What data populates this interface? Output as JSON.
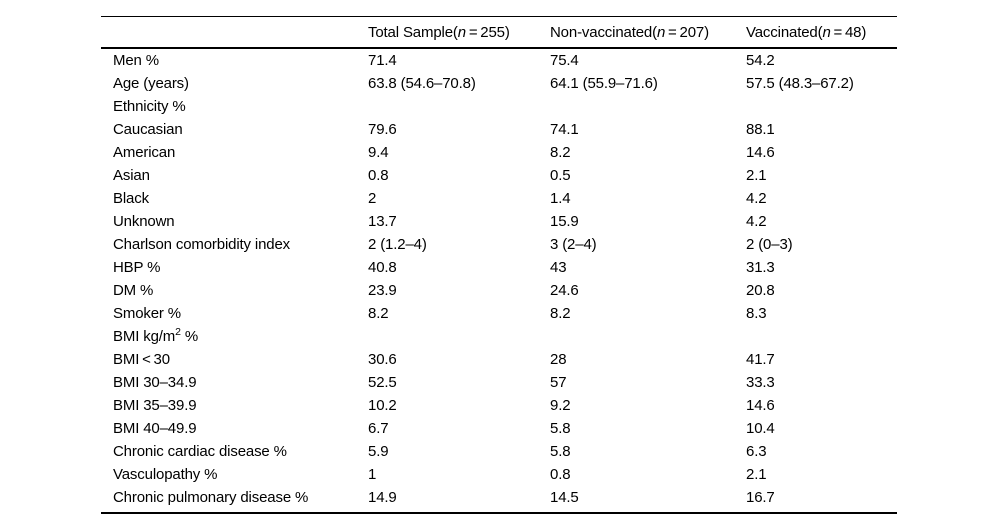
{
  "colors": {
    "text": "#000000",
    "background": "#ffffff",
    "rule": "#000000"
  },
  "table": {
    "header": {
      "columns": [
        {
          "pre": "Total Sample(",
          "n": "n",
          "post": " = 255)"
        },
        {
          "pre": "Non-vaccinated(",
          "n": "n",
          "post": " = 207)"
        },
        {
          "pre": "Vaccinated(",
          "n": "n",
          "post": " = 48)"
        }
      ]
    },
    "rows": [
      {
        "label": "Men %",
        "values": [
          "71.4",
          "75.4",
          "54.2"
        ]
      },
      {
        "label": "Age (years)",
        "values": [
          "63.8 (54.6–70.8)",
          "64.1 (55.9–71.6)",
          "57.5 (48.3–67.2)"
        ]
      },
      {
        "label": "Ethnicity %",
        "values": [
          "",
          "",
          ""
        ]
      },
      {
        "label": "Caucasian",
        "values": [
          "79.6",
          "74.1",
          "88.1"
        ]
      },
      {
        "label": "American",
        "values": [
          "9.4",
          "8.2",
          "14.6"
        ]
      },
      {
        "label": "Asian",
        "values": [
          "0.8",
          "0.5",
          "2.1"
        ]
      },
      {
        "label": "Black",
        "values": [
          "2",
          "1.4",
          "4.2"
        ]
      },
      {
        "label": "Unknown",
        "values": [
          "13.7",
          "15.9",
          "4.2"
        ]
      },
      {
        "label": "Charlson comorbidity index",
        "values": [
          "2 (1.2–4)",
          "3 (2–4)",
          "2 (0–3)"
        ]
      },
      {
        "label": "HBP %",
        "values": [
          "40.8",
          "43",
          "31.3"
        ]
      },
      {
        "label": "DM %",
        "values": [
          "23.9",
          "24.6",
          "20.8"
        ]
      },
      {
        "label": "Smoker %",
        "values": [
          "8.2",
          "8.2",
          "8.3"
        ]
      },
      {
        "label_pre": "BMI kg/m",
        "label_sup": "2",
        "label_post": " %",
        "values": [
          "",
          "",
          ""
        ]
      },
      {
        "label": "BMI < 30",
        "values": [
          "30.6",
          "28",
          "41.7"
        ]
      },
      {
        "label": "BMI 30–34.9",
        "values": [
          "52.5",
          "57",
          "33.3"
        ]
      },
      {
        "label": "BMI 35–39.9",
        "values": [
          "10.2",
          "9.2",
          "14.6"
        ]
      },
      {
        "label": "BMI 40–49.9",
        "values": [
          "6.7",
          "5.8",
          "10.4"
        ]
      },
      {
        "label": "Chronic cardiac disease %",
        "values": [
          "5.9",
          "5.8",
          "6.3"
        ]
      },
      {
        "label": "Vasculopathy %",
        "values": [
          "1",
          "0.8",
          "2.1"
        ]
      },
      {
        "label": "Chronic pulmonary disease %",
        "values": [
          "14.9",
          "14.5",
          "16.7"
        ]
      }
    ]
  }
}
